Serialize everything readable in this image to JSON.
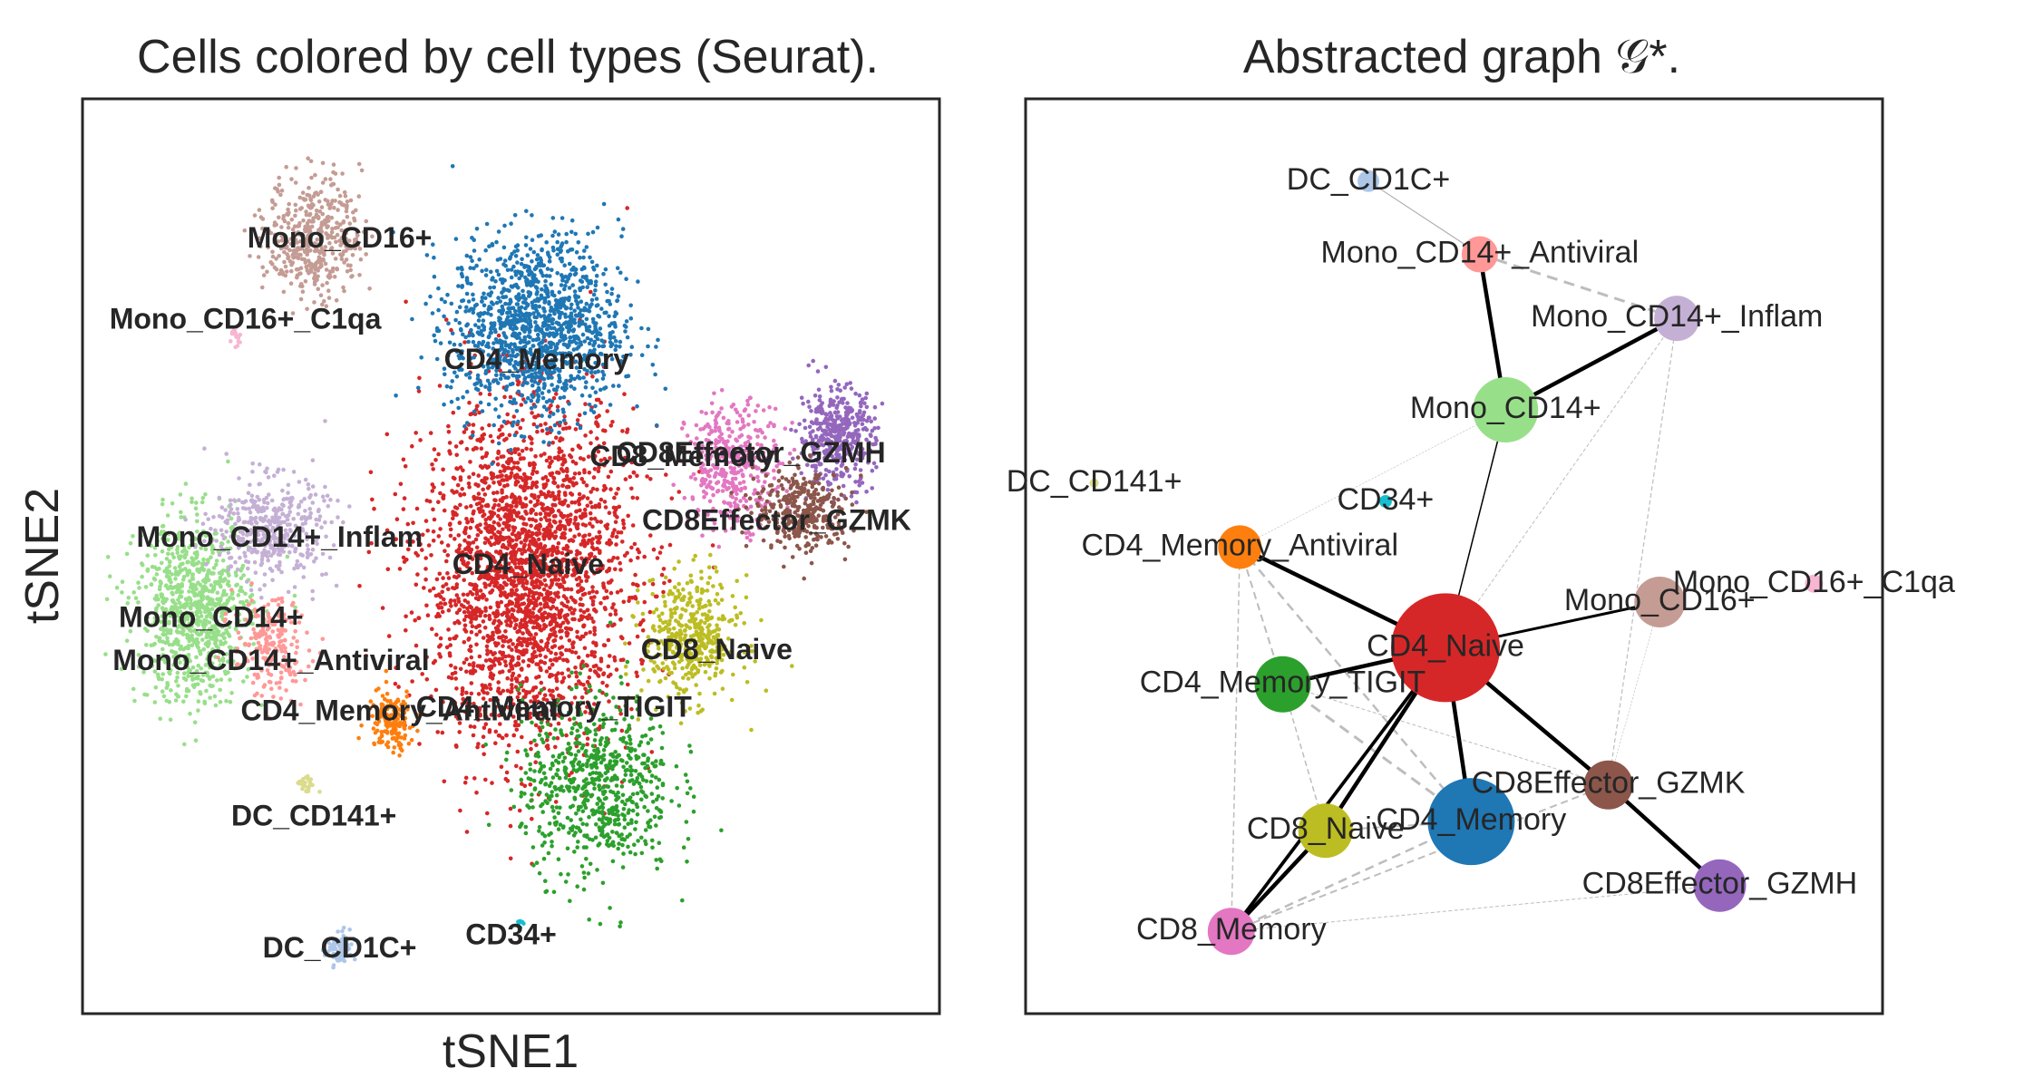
{
  "chart_data": [
    {
      "type": "scatter",
      "title": "Cells colored by cell types (Seurat).",
      "xlabel": "tSNE1",
      "ylabel": "tSNE2",
      "grid": false,
      "legend": "on data",
      "cell_types": [
        {
          "name": "CD4_Naive",
          "color": "#d62728",
          "x": 0.52,
          "y": 0.48,
          "spread_x": 0.11,
          "spread_y": 0.17,
          "count": 2600
        },
        {
          "name": "CD4_Memory",
          "color": "#1f77b4",
          "x": 0.53,
          "y": 0.75,
          "spread_x": 0.09,
          "spread_y": 0.09,
          "count": 1300
        },
        {
          "name": "CD4_Memory_TIGIT",
          "color": "#2ca02c",
          "x": 0.6,
          "y": 0.25,
          "spread_x": 0.08,
          "spread_y": 0.09,
          "count": 700
        },
        {
          "name": "CD4_Memory_Antiviral",
          "color": "#ff7f0e",
          "x": 0.36,
          "y": 0.32,
          "spread_x": 0.025,
          "spread_y": 0.03,
          "count": 160
        },
        {
          "name": "CD8_Naive",
          "color": "#bcbd22",
          "x": 0.71,
          "y": 0.41,
          "spread_x": 0.05,
          "spread_y": 0.06,
          "count": 450
        },
        {
          "name": "CD8_Memory",
          "color": "#e377c2",
          "x": 0.76,
          "y": 0.6,
          "spread_x": 0.05,
          "spread_y": 0.06,
          "count": 380
        },
        {
          "name": "CD8Effector_GZMH",
          "color": "#9467bd",
          "x": 0.88,
          "y": 0.63,
          "spread_x": 0.04,
          "spread_y": 0.05,
          "count": 420
        },
        {
          "name": "CD8Effector_GZMK",
          "color": "#8c564b",
          "x": 0.84,
          "y": 0.55,
          "spread_x": 0.05,
          "spread_y": 0.04,
          "count": 360
        },
        {
          "name": "Mono_CD14+",
          "color": "#98df8a",
          "x": 0.13,
          "y": 0.44,
          "spread_x": 0.06,
          "spread_y": 0.09,
          "count": 900
        },
        {
          "name": "Mono_CD14+_Inflam",
          "color": "#c5b0d5",
          "x": 0.22,
          "y": 0.53,
          "spread_x": 0.06,
          "spread_y": 0.05,
          "count": 420
        },
        {
          "name": "Mono_CD14+_Antiviral",
          "color": "#ff9896",
          "x": 0.22,
          "y": 0.4,
          "spread_x": 0.04,
          "spread_y": 0.05,
          "count": 200
        },
        {
          "name": "Mono_CD16+",
          "color": "#c49c94",
          "x": 0.27,
          "y": 0.85,
          "spread_x": 0.05,
          "spread_y": 0.06,
          "count": 450
        },
        {
          "name": "Mono_CD16+_C1qa",
          "color": "#f7b6d2",
          "x": 0.18,
          "y": 0.74,
          "spread_x": 0.006,
          "spread_y": 0.01,
          "count": 18
        },
        {
          "name": "DC_CD141+",
          "color": "#dbdb8d",
          "x": 0.26,
          "y": 0.25,
          "spread_x": 0.01,
          "spread_y": 0.01,
          "count": 25
        },
        {
          "name": "DC_CD1C+",
          "color": "#aec7e8",
          "x": 0.3,
          "y": 0.07,
          "spread_x": 0.015,
          "spread_y": 0.018,
          "count": 90
        },
        {
          "name": "CD34+",
          "color": "#17becf",
          "x": 0.51,
          "y": 0.1,
          "spread_x": 0.003,
          "spread_y": 0.01,
          "count": 10
        }
      ],
      "labels": [
        {
          "text": "Mono_CD16+",
          "x": 0.3,
          "y": 0.846
        },
        {
          "text": "Mono_CD16+_C1qa",
          "x": 0.19,
          "y": 0.757
        },
        {
          "text": "CD4_Memory",
          "x": 0.53,
          "y": 0.713
        },
        {
          "text": "CD8_Memory",
          "x": 0.7,
          "y": 0.607
        },
        {
          "text": "CD8Effector_GZMH",
          "x": 0.78,
          "y": 0.611
        },
        {
          "text": "CD8Effector_GZMK",
          "x": 0.81,
          "y": 0.537
        },
        {
          "text": "Mono_CD14+_Inflam",
          "x": 0.23,
          "y": 0.519
        },
        {
          "text": "CD4_Naive",
          "x": 0.52,
          "y": 0.489
        },
        {
          "text": "Mono_CD14+",
          "x": 0.15,
          "y": 0.431
        },
        {
          "text": "Mono_CD14+_Antiviral",
          "x": 0.22,
          "y": 0.384
        },
        {
          "text": "CD8_Naive",
          "x": 0.74,
          "y": 0.396
        },
        {
          "text": "CD4_Memory_Antiviral",
          "x": 0.37,
          "y": 0.329
        },
        {
          "text": "CD4_Memory_TIGIT",
          "x": 0.55,
          "y": 0.333
        },
        {
          "text": "DC_CD141+",
          "x": 0.27,
          "y": 0.214
        },
        {
          "text": "CD34+",
          "x": 0.5,
          "y": 0.084
        },
        {
          "text": "DC_CD1C+",
          "x": 0.3,
          "y": 0.07
        }
      ]
    },
    {
      "type": "graph",
      "title": "Abstracted graph 𝒢*.",
      "nodes": [
        {
          "name": "DC_CD1C+",
          "color": "#aec7e8",
          "x": 0.4,
          "y": 0.91,
          "size": 12
        },
        {
          "name": "Mono_CD14+_Antiviral",
          "color": "#ff9896",
          "x": 0.53,
          "y": 0.83,
          "size": 20
        },
        {
          "name": "Mono_CD14+_Inflam",
          "color": "#c5b0d5",
          "x": 0.76,
          "y": 0.76,
          "size": 25
        },
        {
          "name": "Mono_CD14+",
          "color": "#98df8a",
          "x": 0.56,
          "y": 0.66,
          "size": 36
        },
        {
          "name": "DC_CD141+",
          "color": "#dbdb8d",
          "x": 0.08,
          "y": 0.58,
          "size": 5
        },
        {
          "name": "CD34+",
          "color": "#17becf",
          "x": 0.42,
          "y": 0.56,
          "size": 7
        },
        {
          "name": "CD4_Memory_Antiviral",
          "color": "#ff7f0e",
          "x": 0.25,
          "y": 0.51,
          "size": 24
        },
        {
          "name": "Mono_CD16+_C1qa",
          "color": "#f7b6d2",
          "x": 0.92,
          "y": 0.47,
          "size": 10
        },
        {
          "name": "Mono_CD16+",
          "color": "#c49c94",
          "x": 0.74,
          "y": 0.45,
          "size": 28
        },
        {
          "name": "CD4_Naive",
          "color": "#d62728",
          "x": 0.49,
          "y": 0.4,
          "size": 60
        },
        {
          "name": "CD4_Memory_TIGIT",
          "color": "#2ca02c",
          "x": 0.3,
          "y": 0.36,
          "size": 31
        },
        {
          "name": "CD8Effector_GZMK",
          "color": "#8c564b",
          "x": 0.68,
          "y": 0.25,
          "size": 27
        },
        {
          "name": "CD8_Naive",
          "color": "#bcbd22",
          "x": 0.35,
          "y": 0.2,
          "size": 30
        },
        {
          "name": "CD4_Memory",
          "color": "#1f77b4",
          "x": 0.52,
          "y": 0.21,
          "size": 48
        },
        {
          "name": "CD8Effector_GZMH",
          "color": "#9467bd",
          "x": 0.81,
          "y": 0.14,
          "size": 29
        },
        {
          "name": "CD8_Memory",
          "color": "#e377c2",
          "x": 0.24,
          "y": 0.09,
          "size": 26
        }
      ],
      "edges_solid": [
        {
          "source": "Mono_CD14+_Antiviral",
          "target": "Mono_CD14+",
          "weight": 3
        },
        {
          "source": "Mono_CD14+",
          "target": "Mono_CD14+_Inflam",
          "weight": 3
        },
        {
          "source": "CD4_Naive",
          "target": "CD4_Memory_Antiviral",
          "weight": 3
        },
        {
          "source": "CD4_Naive",
          "target": "CD4_Memory_TIGIT",
          "weight": 3
        },
        {
          "source": "CD4_Naive",
          "target": "CD4_Memory",
          "weight": 3
        },
        {
          "source": "CD4_Naive",
          "target": "CD8Effector_GZMK",
          "weight": 3
        },
        {
          "source": "CD8Effector_GZMK",
          "target": "CD8Effector_GZMH",
          "weight": 3
        },
        {
          "source": "CD4_Naive",
          "target": "CD8_Naive",
          "weight": 3
        },
        {
          "source": "CD8_Naive",
          "target": "CD8_Memory",
          "weight": 3
        },
        {
          "source": "CD4_Naive",
          "target": "CD8_Memory",
          "weight": 2.5
        },
        {
          "source": "CD4_Naive",
          "target": "Mono_CD16+",
          "weight": 2
        },
        {
          "source": "CD4_Naive",
          "target": "Mono_CD14+",
          "weight": 1
        },
        {
          "source": "DC_CD1C+",
          "target": "Mono_CD14+_Antiviral",
          "weight": 0.8
        }
      ],
      "edges_dashed": [
        {
          "source": "Mono_CD14+_Antiviral",
          "target": "Mono_CD14+_Inflam",
          "weight": 3
        },
        {
          "source": "CD4_Memory_TIGIT",
          "target": "CD4_Memory",
          "weight": 3
        },
        {
          "source": "CD4_Memory_Antiviral",
          "target": "CD4_Memory",
          "weight": 2.5
        },
        {
          "source": "CD4_Memory_Antiviral",
          "target": "CD4_Memory_TIGIT",
          "weight": 2
        },
        {
          "source": "CD8_Memory",
          "target": "CD4_Memory",
          "weight": 2.5
        },
        {
          "source": "CD8_Memory",
          "target": "CD8Effector_GZMK",
          "weight": 2
        },
        {
          "source": "CD8_Naive",
          "target": "CD4_Memory",
          "weight": 2
        },
        {
          "source": "CD4_Memory_TIGIT",
          "target": "CD8_Naive",
          "weight": 1.5
        },
        {
          "source": "CD4_Memory_Antiviral",
          "target": "CD8_Memory",
          "weight": 1.5
        },
        {
          "source": "Mono_CD14+_Inflam",
          "target": "CD8Effector_GZMK",
          "weight": 1.2
        },
        {
          "source": "Mono_CD14+_Inflam",
          "target": "CD4_Naive",
          "weight": 1
        },
        {
          "source": "CD4_Memory_TIGIT",
          "target": "CD8Effector_GZMK",
          "weight": 1
        },
        {
          "source": "CD8_Memory",
          "target": "CD8Effector_GZMH",
          "weight": 1
        },
        {
          "source": "Mono_CD14+",
          "target": "CD4_Memory_Antiviral",
          "weight": 0.6
        },
        {
          "source": "Mono_CD16+",
          "target": "CD8Effector_GZMK",
          "weight": 0.6
        }
      ],
      "labels": [
        {
          "text": "DC_CD1C+",
          "node": "DC_CD1C+",
          "dx": 0,
          "dy": 0
        },
        {
          "text": "Mono_CD14+_Antiviral",
          "node": "Mono_CD14+_Antiviral",
          "dx": 0,
          "dy": 0
        },
        {
          "text": "Mono_CD14+_Inflam",
          "node": "Mono_CD14+_Inflam",
          "dx": 0,
          "dy": 0
        },
        {
          "text": "Mono_CD14+",
          "node": "Mono_CD14+",
          "dx": 0,
          "dy": 0
        },
        {
          "text": "DC_CD141+",
          "node": "DC_CD141+",
          "dx": 0,
          "dy": 0
        },
        {
          "text": "CD34+",
          "node": "CD34+",
          "dx": 0,
          "dy": 0
        },
        {
          "text": "CD4_Memory_Antiviral",
          "node": "CD4_Memory_Antiviral",
          "dx": 0,
          "dy": 0
        },
        {
          "text": "Mono_CD16+_C1qa",
          "node": "Mono_CD16+_C1qa",
          "dx": 0,
          "dy": 0
        },
        {
          "text": "Mono_CD16+",
          "node": "Mono_CD16+",
          "dx": 0,
          "dy": 0
        },
        {
          "text": "CD4_Naive",
          "node": "CD4_Naive",
          "dx": 0,
          "dy": 0
        },
        {
          "text": "CD4_Memory_TIGIT",
          "node": "CD4_Memory_TIGIT",
          "dx": 0,
          "dy": 0
        },
        {
          "text": "CD8Effector_GZMK",
          "node": "CD8Effector_GZMK",
          "dx": 0,
          "dy": 0
        },
        {
          "text": "CD8_Naive",
          "node": "CD8_Naive",
          "dx": 0,
          "dy": 0
        },
        {
          "text": "CD4_Memory",
          "node": "CD4_Memory",
          "dx": 0,
          "dy": 0
        },
        {
          "text": "CD8Effector_GZMH",
          "node": "CD8Effector_GZMH",
          "dx": 0,
          "dy": 0
        },
        {
          "text": "CD8_Memory",
          "node": "CD8_Memory",
          "dx": 0,
          "dy": 0
        }
      ]
    }
  ]
}
